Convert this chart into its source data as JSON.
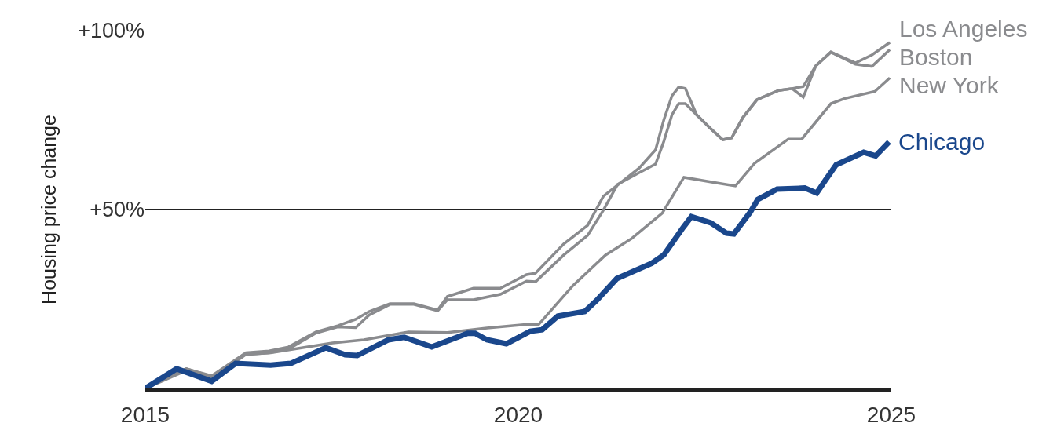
{
  "chart_data": {
    "type": "line",
    "ylabel": "Housing price change",
    "xlim": [
      2015,
      2025
    ],
    "xticks": [
      2015,
      2020,
      2025
    ],
    "ylim": [
      0,
      100
    ],
    "yticks": [
      {
        "value": 50,
        "label": "+50%"
      },
      {
        "value": 100,
        "label": "+100%"
      }
    ],
    "grid": "y",
    "legend": false,
    "marker": "none",
    "line_style": "solid",
    "series": [
      {
        "name": "Los Angeles",
        "color": "#8a8b8e",
        "x": [
          2015,
          2015.55,
          2015.89,
          2016.35,
          2016.66,
          2016.92,
          2017.29,
          2017.58,
          2017.82,
          2018,
          2018.28,
          2018.6,
          2018.92,
          2019.05,
          2019.4,
          2019.76,
          2020.11,
          2020.23,
          2020.61,
          2020.93,
          2021.14,
          2021.33,
          2021.62,
          2021.84,
          2021.95,
          2022.06,
          2022.15,
          2022.24,
          2022.39,
          2022.58,
          2022.74,
          2022.86,
          2023.01,
          2023.2,
          2023.49,
          2023.67,
          2023.82,
          2023.99,
          2024.19,
          2024.52,
          2024.74,
          2024.98
        ],
        "values": [
          0,
          5.5,
          3.5,
          10,
          10.5,
          11.6,
          15.8,
          17.5,
          19.3,
          21.5,
          23.7,
          23.7,
          21.9,
          25.7,
          28,
          28,
          31.8,
          32.2,
          40.4,
          45.6,
          53.7,
          56.8,
          61.6,
          66.7,
          75,
          81.8,
          84.2,
          83.8,
          76.5,
          72.6,
          69.5,
          70,
          75.7,
          80.7,
          83.3,
          83.8,
          84.4,
          90.2,
          94,
          91,
          93.2,
          96.7
        ]
      },
      {
        "name": "Boston",
        "color": "#8a8b8e",
        "x": [
          2015,
          2015.55,
          2015.89,
          2016.35,
          2016.66,
          2016.92,
          2017.29,
          2017.58,
          2017.82,
          2018,
          2018.28,
          2018.6,
          2018.92,
          2019.05,
          2019.4,
          2019.76,
          2020.11,
          2020.23,
          2020.61,
          2020.93,
          2021.14,
          2021.33,
          2021.62,
          2021.84,
          2021.95,
          2022.06,
          2022.15,
          2022.24,
          2022.39,
          2022.58,
          2022.74,
          2022.86,
          2023.01,
          2023.2,
          2023.49,
          2023.67,
          2023.82,
          2023.99,
          2024.19,
          2024.52,
          2024.74,
          2024.98
        ],
        "values": [
          0,
          5,
          2.8,
          9.5,
          10,
          11,
          15.5,
          17.2,
          17,
          20.5,
          23.5,
          23.5,
          21.7,
          24.8,
          24.8,
          26.3,
          30,
          29.8,
          37.3,
          42.8,
          49.8,
          57,
          60.3,
          62.7,
          69,
          76.5,
          79.6,
          79.6,
          76.5,
          72.6,
          69.5,
          70,
          75.7,
          80.7,
          83.3,
          83.8,
          81.4,
          90.2,
          94,
          90.6,
          90,
          94.7
        ]
      },
      {
        "name": "New York",
        "color": "#8a8b8e",
        "x": [
          2015,
          2015.55,
          2015.89,
          2016.32,
          2016.68,
          2017.51,
          2017.93,
          2018.53,
          2019.05,
          2019.58,
          2020.07,
          2020.27,
          2020.73,
          2021.17,
          2021.52,
          2021.93,
          2022.22,
          2022.64,
          2022.91,
          2023.17,
          2023.62,
          2023.8,
          2024.19,
          2024.37,
          2024.78,
          2024.98
        ],
        "values": [
          0,
          5.5,
          3.3,
          9.5,
          10,
          12.7,
          13.6,
          15.8,
          15.6,
          16.9,
          17.8,
          17.8,
          28.7,
          37.3,
          41.9,
          49,
          59,
          57.5,
          56.6,
          63,
          69.7,
          69.7,
          79.6,
          81,
          83,
          86.8
        ]
      },
      {
        "name": "Chicago",
        "color": "#1a478c",
        "x": [
          2015,
          2015.42,
          2015.89,
          2016.21,
          2016.68,
          2016.95,
          2017.42,
          2017.68,
          2017.84,
          2018.26,
          2018.47,
          2018.84,
          2019.32,
          2019.42,
          2019.58,
          2019.84,
          2020.16,
          2020.32,
          2020.53,
          2020.89,
          2021.05,
          2021.32,
          2021.79,
          2021.95,
          2022.21,
          2022.32,
          2022.58,
          2022.79,
          2022.89,
          2023.11,
          2023.21,
          2023.47,
          2023.84,
          2024,
          2024.11,
          2024.26,
          2024.63,
          2024.79,
          2024.97
        ],
        "values": [
          0,
          5.5,
          2,
          7,
          6.5,
          7,
          11.4,
          9.4,
          9.2,
          13.6,
          14.3,
          11.6,
          15.4,
          15.4,
          13.6,
          12.5,
          16,
          16.4,
          20.2,
          21.5,
          24.6,
          30.7,
          35,
          37.3,
          45,
          48,
          46.3,
          43.4,
          43.2,
          49.3,
          52.8,
          55.7,
          56,
          54.6,
          58,
          62.5,
          66,
          65,
          68.9
        ]
      }
    ]
  }
}
